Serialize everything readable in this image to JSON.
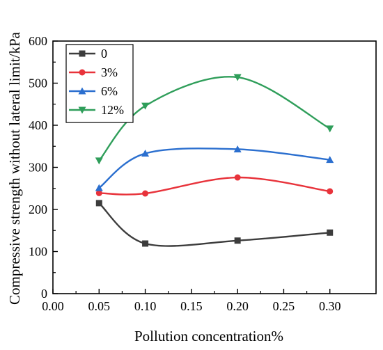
{
  "chart_data": {
    "type": "line",
    "xlabel": "Pollution concentration%",
    "ylabel": "Compressive strength without lateral limit/kPa",
    "xlim": [
      0.0,
      0.35
    ],
    "ylim": [
      0,
      600
    ],
    "x_ticks": [
      "0.00",
      "0.05",
      "0.10",
      "0.15",
      "0.20",
      "0.25",
      "0.30"
    ],
    "y_ticks": [
      "0",
      "100",
      "200",
      "300",
      "400",
      "500",
      "600"
    ],
    "x": [
      0.05,
      0.1,
      0.2,
      0.3
    ],
    "series": [
      {
        "name": "0",
        "color": "#3c3c3c",
        "marker": "square",
        "values": [
          215,
          119,
          126,
          145
        ]
      },
      {
        "name": "3%",
        "color": "#e8333b",
        "marker": "circle",
        "values": [
          239,
          238,
          276,
          243
        ]
      },
      {
        "name": "6%",
        "color": "#2b6fcf",
        "marker": "triangle-up",
        "values": [
          251,
          333,
          343,
          318
        ]
      },
      {
        "name": "12%",
        "color": "#2f9e5a",
        "marker": "triangle-down",
        "values": [
          316,
          446,
          514,
          392
        ]
      }
    ],
    "legend_position": "top-left",
    "grid": false,
    "smooth": true
  }
}
